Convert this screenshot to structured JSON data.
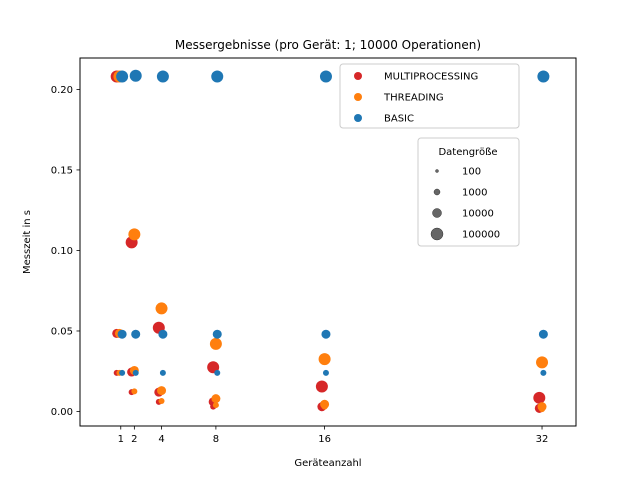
{
  "chart_data": {
    "type": "scatter",
    "title": "Messergebnisse (pro Gerät: 1; 10000 Operationen)",
    "xlabel": "Geräteanzahl",
    "ylabel": "Messzeit in s",
    "xlim": [
      -2,
      34.5
    ],
    "ylim": [
      -0.009,
      0.2195
    ],
    "x_ticks": [
      1,
      2,
      4,
      8,
      16,
      32
    ],
    "x_tick_labels": [
      "1",
      "2",
      "4",
      "8",
      "16",
      "32"
    ],
    "y_ticks": [
      0.0,
      0.05,
      0.1,
      0.15,
      0.2
    ],
    "y_tick_labels": [
      "0.00",
      "0.05",
      "0.10",
      "0.15",
      "0.20"
    ],
    "grid": false,
    "series": [
      {
        "name": "MULTIPROCESSING",
        "color": "#d62728",
        "points": [
          {
            "x": 0.7,
            "y": 0.208,
            "size": 100000
          },
          {
            "x": 0.7,
            "y": 0.0485,
            "size": 10000
          },
          {
            "x": 0.7,
            "y": 0.024,
            "size": 1000
          },
          {
            "x": 1.8,
            "y": 0.105,
            "size": 100000
          },
          {
            "x": 1.8,
            "y": 0.0245,
            "size": 10000
          },
          {
            "x": 1.8,
            "y": 0.012,
            "size": 1000
          },
          {
            "x": 3.8,
            "y": 0.052,
            "size": 100000
          },
          {
            "x": 3.8,
            "y": 0.012,
            "size": 10000
          },
          {
            "x": 3.8,
            "y": 0.006,
            "size": 1000
          },
          {
            "x": 7.8,
            "y": 0.0275,
            "size": 100000
          },
          {
            "x": 7.8,
            "y": 0.006,
            "size": 10000
          },
          {
            "x": 7.8,
            "y": 0.003,
            "size": 1000
          },
          {
            "x": 15.8,
            "y": 0.0155,
            "size": 100000
          },
          {
            "x": 15.8,
            "y": 0.003,
            "size": 10000
          },
          {
            "x": 15.8,
            "y": 0.002,
            "size": 1000
          },
          {
            "x": 31.8,
            "y": 0.0085,
            "size": 100000
          },
          {
            "x": 31.8,
            "y": 0.002,
            "size": 10000
          },
          {
            "x": 31.8,
            "y": 0.001,
            "size": 1000
          }
        ]
      },
      {
        "name": "THREADING",
        "color": "#ff7f0e",
        "points": [
          {
            "x": 0.9,
            "y": 0.208,
            "size": 100000
          },
          {
            "x": 0.9,
            "y": 0.0485,
            "size": 10000
          },
          {
            "x": 0.9,
            "y": 0.024,
            "size": 1000
          },
          {
            "x": 2.0,
            "y": 0.11,
            "size": 100000
          },
          {
            "x": 2.0,
            "y": 0.0255,
            "size": 10000
          },
          {
            "x": 2.0,
            "y": 0.0125,
            "size": 1000
          },
          {
            "x": 4.0,
            "y": 0.064,
            "size": 100000
          },
          {
            "x": 4.0,
            "y": 0.013,
            "size": 10000
          },
          {
            "x": 4.0,
            "y": 0.0065,
            "size": 1000
          },
          {
            "x": 8.0,
            "y": 0.042,
            "size": 100000
          },
          {
            "x": 8.0,
            "y": 0.008,
            "size": 10000
          },
          {
            "x": 8.0,
            "y": 0.004,
            "size": 1000
          },
          {
            "x": 16.0,
            "y": 0.0325,
            "size": 100000
          },
          {
            "x": 16.0,
            "y": 0.0045,
            "size": 10000
          },
          {
            "x": 16.0,
            "y": 0.003,
            "size": 1000
          },
          {
            "x": 32.0,
            "y": 0.0305,
            "size": 100000
          },
          {
            "x": 32.0,
            "y": 0.003,
            "size": 10000
          },
          {
            "x": 32.0,
            "y": 0.0015,
            "size": 1000
          }
        ]
      },
      {
        "name": "BASIC",
        "color": "#1f77b4",
        "points": [
          {
            "x": 1.1,
            "y": 0.208,
            "size": 100000
          },
          {
            "x": 1.1,
            "y": 0.048,
            "size": 10000
          },
          {
            "x": 1.1,
            "y": 0.024,
            "size": 1000
          },
          {
            "x": 2.1,
            "y": 0.2085,
            "size": 100000
          },
          {
            "x": 2.1,
            "y": 0.048,
            "size": 10000
          },
          {
            "x": 2.1,
            "y": 0.024,
            "size": 1000
          },
          {
            "x": 4.1,
            "y": 0.208,
            "size": 100000
          },
          {
            "x": 4.1,
            "y": 0.048,
            "size": 10000
          },
          {
            "x": 4.1,
            "y": 0.024,
            "size": 1000
          },
          {
            "x": 8.1,
            "y": 0.208,
            "size": 100000
          },
          {
            "x": 8.1,
            "y": 0.048,
            "size": 10000
          },
          {
            "x": 8.1,
            "y": 0.024,
            "size": 1000
          },
          {
            "x": 16.1,
            "y": 0.208,
            "size": 100000
          },
          {
            "x": 16.1,
            "y": 0.048,
            "size": 10000
          },
          {
            "x": 16.1,
            "y": 0.024,
            "size": 1000
          },
          {
            "x": 32.1,
            "y": 0.208,
            "size": 100000
          },
          {
            "x": 32.1,
            "y": 0.048,
            "size": 10000
          },
          {
            "x": 32.1,
            "y": 0.024,
            "size": 1000
          }
        ]
      }
    ],
    "legend": {
      "placement": "top-right",
      "entries": [
        "MULTIPROCESSING",
        "THREADING",
        "BASIC"
      ]
    },
    "size_legend": {
      "title": "Datengröße",
      "placement": "upper-right",
      "color": "#555555",
      "entries": [
        {
          "label": "100",
          "size": 100
        },
        {
          "label": "1000",
          "size": 1000
        },
        {
          "label": "10000",
          "size": 10000
        },
        {
          "label": "100000",
          "size": 100000
        }
      ]
    }
  }
}
